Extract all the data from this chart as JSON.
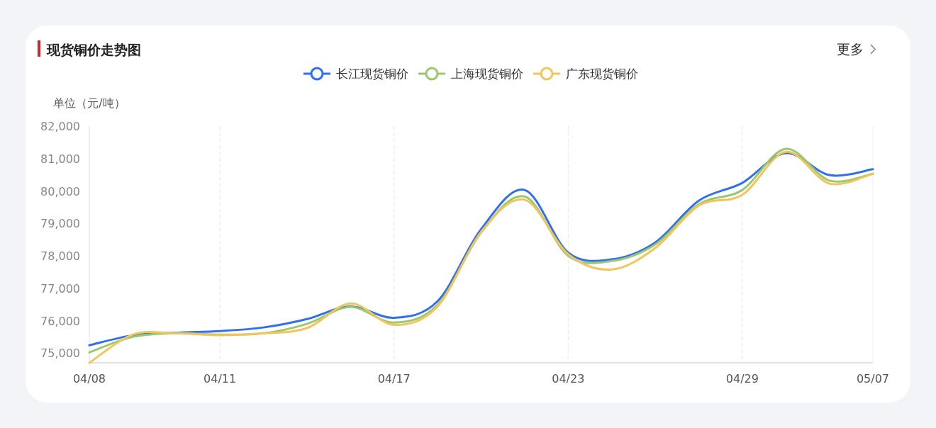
{
  "chart_data": {
    "type": "line",
    "title": "现货铜价走势图",
    "ylabel": "单位（元/吨）",
    "annotations": [
      "更多"
    ],
    "categories": [
      "04/08",
      null,
      null,
      "04/11",
      null,
      null,
      null,
      "04/17",
      null,
      null,
      null,
      "04/23",
      null,
      null,
      null,
      "04/29",
      null,
      null,
      "05/07"
    ],
    "series": [
      {
        "name": "长江现货铜价",
        "color": "#2f6ff0",
        "values": [
          75240,
          75550,
          75630,
          75680,
          75790,
          76050,
          76440,
          76090,
          76600,
          78820,
          80030,
          78100,
          77890,
          78410,
          79700,
          80250,
          81170,
          80490,
          80670
        ]
      },
      {
        "name": "上海现货铜价",
        "color": "#9bc86f",
        "values": [
          75020,
          75500,
          75610,
          75570,
          75610,
          75900,
          76420,
          75940,
          76490,
          78720,
          79830,
          78000,
          77840,
          78350,
          79590,
          80030,
          81300,
          80320,
          80530
        ]
      },
      {
        "name": "广东现货铜价",
        "color": "#f2c55c",
        "values": [
          74700,
          75570,
          75610,
          75550,
          75610,
          75770,
          76530,
          75870,
          76440,
          78740,
          79730,
          78050,
          77580,
          78240,
          79550,
          79880,
          81210,
          80230,
          80530
        ]
      }
    ],
    "ylim": [
      74700,
      82000
    ],
    "yticks": [
      {
        "value": 75000,
        "label": "75,000"
      },
      {
        "value": 76000,
        "label": "76,000"
      },
      {
        "value": 77000,
        "label": "77,000"
      },
      {
        "value": 78000,
        "label": "78,000"
      },
      {
        "value": 79000,
        "label": "79,000"
      },
      {
        "value": 80000,
        "label": "80,000"
      },
      {
        "value": 81000,
        "label": "81,000"
      },
      {
        "value": 82000,
        "label": "82,000"
      }
    ],
    "grid": "x",
    "legend": "top",
    "marker": "none",
    "line_style": "solid"
  }
}
